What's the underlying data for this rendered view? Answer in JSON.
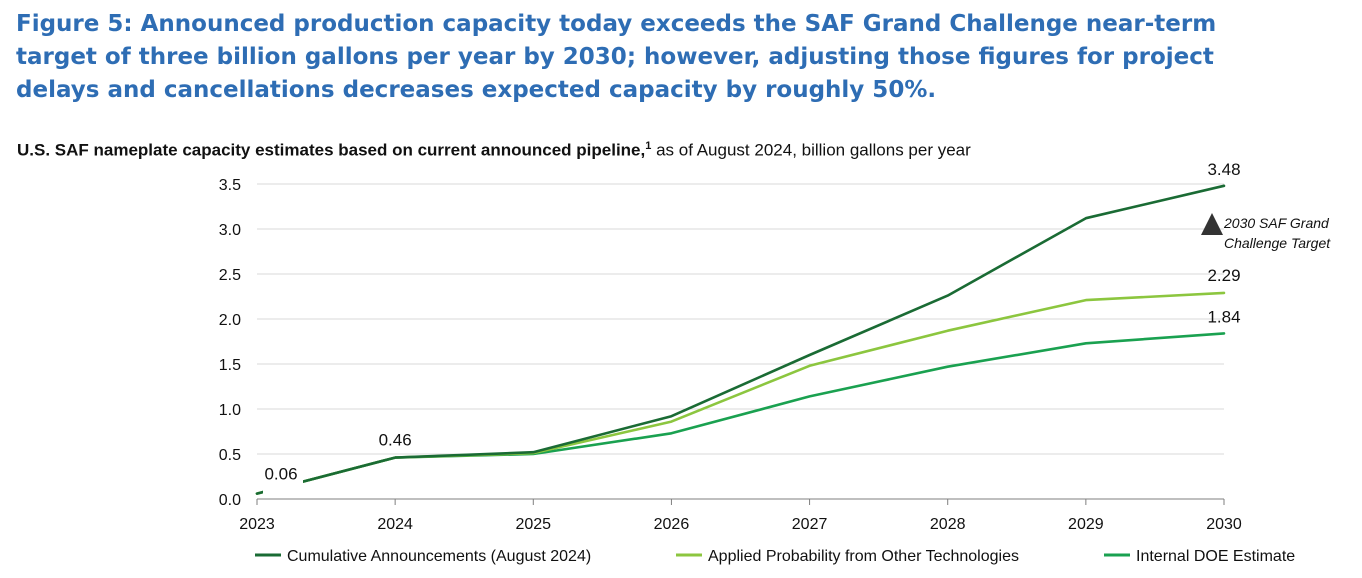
{
  "figure_title": "Figure 5: Announced production capacity today exceeds the SAF Grand Challenge near-term target of three billion gallons per year by 2030; however, adjusting those figures for project delays and cancellations decreases expected capacity by roughly 50%.",
  "subtitle": {
    "bold": "U.S. SAF nameplate capacity estimates based on current announced pipeline,",
    "footnote": "1",
    "rest": " as of August 2024, billion gallons per year"
  },
  "chart_data": {
    "type": "line",
    "x": [
      2023,
      2024,
      2025,
      2026,
      2027,
      2028,
      2029,
      2030
    ],
    "ylim": [
      0,
      3.5
    ],
    "yticks": [
      0.0,
      0.5,
      1.0,
      1.5,
      2.0,
      2.5,
      3.0,
      3.5
    ],
    "ytick_labels": [
      "0.0",
      "0.5",
      "1.0",
      "1.5",
      "2.0",
      "2.5",
      "3.0",
      "3.5"
    ],
    "xtick_labels": [
      "2023",
      "2024",
      "2025",
      "2026",
      "2027",
      "2028",
      "2029",
      "2030"
    ],
    "grid": "horizontal",
    "legend_position": "bottom",
    "series": [
      {
        "name": "Cumulative Announcements (August 2024)",
        "color": "#1a6b34",
        "values": [
          0.06,
          0.46,
          0.52,
          0.92,
          1.6,
          2.26,
          3.12,
          3.48
        ]
      },
      {
        "name": "Applied Probability from Other Technologies",
        "color": "#8cc63f",
        "values": [
          0.06,
          0.46,
          0.51,
          0.86,
          1.48,
          1.87,
          2.21,
          2.29
        ]
      },
      {
        "name": "Internal DOE Estimate",
        "color": "#1aa150",
        "values": [
          0.06,
          0.46,
          0.5,
          0.73,
          1.14,
          1.47,
          1.73,
          1.84
        ]
      }
    ],
    "data_labels": [
      {
        "x": 2023,
        "y": 0.06,
        "text": "0.06"
      },
      {
        "x": 2024,
        "y": 0.46,
        "text": "0.46"
      },
      {
        "x": 2030,
        "y": 3.48,
        "text": "3.48"
      },
      {
        "x": 2030,
        "y": 2.29,
        "text": "2.29"
      },
      {
        "x": 2030,
        "y": 1.84,
        "text": "1.84"
      }
    ],
    "target": {
      "x": 2030,
      "y": 3.0,
      "label_line1": "2030 SAF Grand",
      "label_line2": "Challenge Target",
      "color": "#333333"
    }
  }
}
